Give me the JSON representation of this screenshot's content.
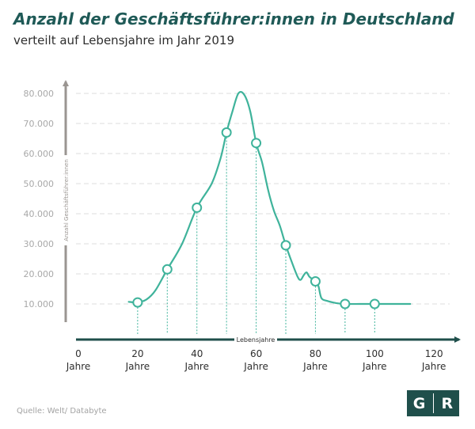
{
  "header": {
    "title": "Anzahl der Geschäftsführer:innen in Deutschland",
    "subtitle": "verteilt auf Lebensjahre im Jahr 2019"
  },
  "footer": {
    "source": "Quelle: Welt/ Databyte",
    "logo_letters": [
      "G",
      "R"
    ]
  },
  "colors": {
    "line": "#3fb39b",
    "title": "#1f5a57",
    "x_axis": "#1f4f4b",
    "y_axis": "#9a9591",
    "logo_bg": "#1f4f4b"
  },
  "chart_data": {
    "type": "line",
    "xlabel": "Lebensjahre",
    "ylabel": "Anzahl Geschäftsführer:innen",
    "xlim": [
      0,
      130
    ],
    "ylim": [
      0,
      85000
    ],
    "x_ticks": [
      {
        "value": 0,
        "label": "0",
        "unit": "Jahre"
      },
      {
        "value": 20,
        "label": "20",
        "unit": "Jahre"
      },
      {
        "value": 40,
        "label": "40",
        "unit": "Jahre"
      },
      {
        "value": 60,
        "label": "60",
        "unit": "Jahre"
      },
      {
        "value": 80,
        "label": "80",
        "unit": "Jahre"
      },
      {
        "value": 100,
        "label": "100",
        "unit": "Jahre"
      },
      {
        "value": 120,
        "label": "120",
        "unit": "Jahre"
      }
    ],
    "y_ticks": [
      {
        "value": 10000,
        "label": "10.000"
      },
      {
        "value": 20000,
        "label": "20.000"
      },
      {
        "value": 30000,
        "label": "30.000"
      },
      {
        "value": 40000,
        "label": "40.000"
      },
      {
        "value": 50000,
        "label": "50.000"
      },
      {
        "value": 60000,
        "label": "60.000"
      },
      {
        "value": 70000,
        "label": "70.000"
      },
      {
        "value": 80000,
        "label": "80.000"
      }
    ],
    "grid": "horizontal-dashed",
    "series": [
      {
        "curve": [
          [
            17,
            10700
          ],
          [
            20,
            10500
          ],
          [
            23,
            11500
          ],
          [
            26,
            14500
          ],
          [
            30,
            21500
          ],
          [
            35,
            30000
          ],
          [
            40,
            42000
          ],
          [
            45,
            50000
          ],
          [
            48,
            58500
          ],
          [
            50,
            67000
          ],
          [
            52,
            74000
          ],
          [
            54,
            80000
          ],
          [
            56,
            79500
          ],
          [
            58,
            74000
          ],
          [
            60,
            63500
          ],
          [
            62,
            57000
          ],
          [
            64,
            48000
          ],
          [
            66,
            41000
          ],
          [
            68,
            36000
          ],
          [
            70,
            29500
          ],
          [
            72,
            24000
          ],
          [
            74,
            19000
          ],
          [
            75,
            18000
          ],
          [
            76,
            19500
          ],
          [
            77,
            20500
          ],
          [
            78,
            19000
          ],
          [
            80,
            17500
          ],
          [
            81,
            16000
          ],
          [
            82,
            12000
          ],
          [
            84,
            11000
          ],
          [
            87,
            10300
          ],
          [
            90,
            10000
          ],
          [
            95,
            10000
          ],
          [
            100,
            10000
          ],
          [
            105,
            10000
          ],
          [
            112,
            10000
          ]
        ],
        "markers": [
          [
            20,
            10500
          ],
          [
            30,
            21500
          ],
          [
            40,
            42000
          ],
          [
            50,
            67000
          ],
          [
            60,
            63500
          ],
          [
            70,
            29500
          ],
          [
            80,
            17500
          ],
          [
            90,
            10000
          ],
          [
            100,
            10000
          ]
        ]
      }
    ]
  }
}
